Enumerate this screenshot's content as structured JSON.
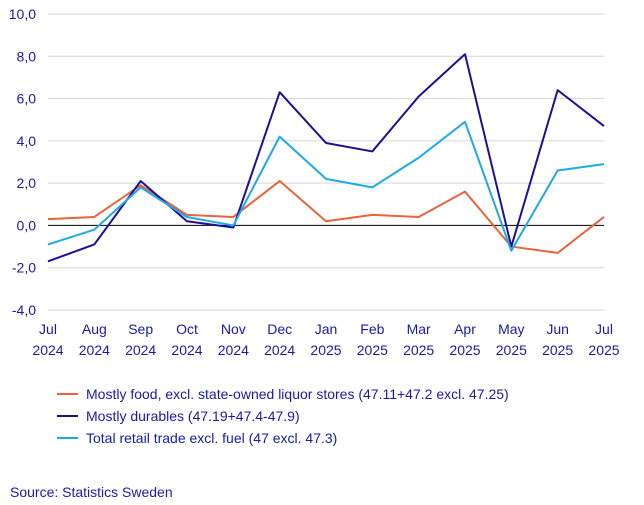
{
  "chart_data": {
    "type": "line",
    "categories": [
      [
        "Jul",
        "2024"
      ],
      [
        "Aug",
        "2024"
      ],
      [
        "Sep",
        "2024"
      ],
      [
        "Oct",
        "2024"
      ],
      [
        "Nov",
        "2024"
      ],
      [
        "Dec",
        "2024"
      ],
      [
        "Jan",
        "2025"
      ],
      [
        "Feb",
        "2025"
      ],
      [
        "Mar",
        "2025"
      ],
      [
        "Apr",
        "2025"
      ],
      [
        "May",
        "2025"
      ],
      [
        "Jun",
        "2025"
      ],
      [
        "Jul",
        "2025"
      ]
    ],
    "yticks": [
      "10,0",
      "8,0",
      "6,0",
      "4,0",
      "2,0",
      "0,0",
      "-2,0",
      "-4,0"
    ],
    "ylim": [
      -4,
      10
    ],
    "grid": true,
    "legend_position": "bottom",
    "series": [
      {
        "name": "Mostly food, excl. state-owned liquor stores (47.11+47.2 excl. 47.25)",
        "color": "#e8643c",
        "values": [
          0.3,
          0.4,
          1.9,
          0.5,
          0.4,
          2.1,
          0.2,
          0.5,
          0.4,
          1.6,
          -1.0,
          -1.3,
          0.4
        ]
      },
      {
        "name": "Mostly durables (47.19+47.4-47.9)",
        "color": "#1e0f96",
        "values": [
          -1.7,
          -0.9,
          2.1,
          0.2,
          -0.1,
          6.3,
          3.9,
          3.5,
          6.1,
          8.1,
          -1.0,
          6.4,
          4.7
        ]
      },
      {
        "name": "Total retail trade excl. fuel (47 excl. 47.3)",
        "color": "#1eaae6",
        "values": [
          -0.9,
          -0.2,
          1.8,
          0.4,
          0.0,
          4.2,
          2.2,
          1.8,
          3.2,
          4.9,
          -1.2,
          2.6,
          2.9
        ]
      }
    ],
    "source": "Source: Statistics Sweden"
  }
}
